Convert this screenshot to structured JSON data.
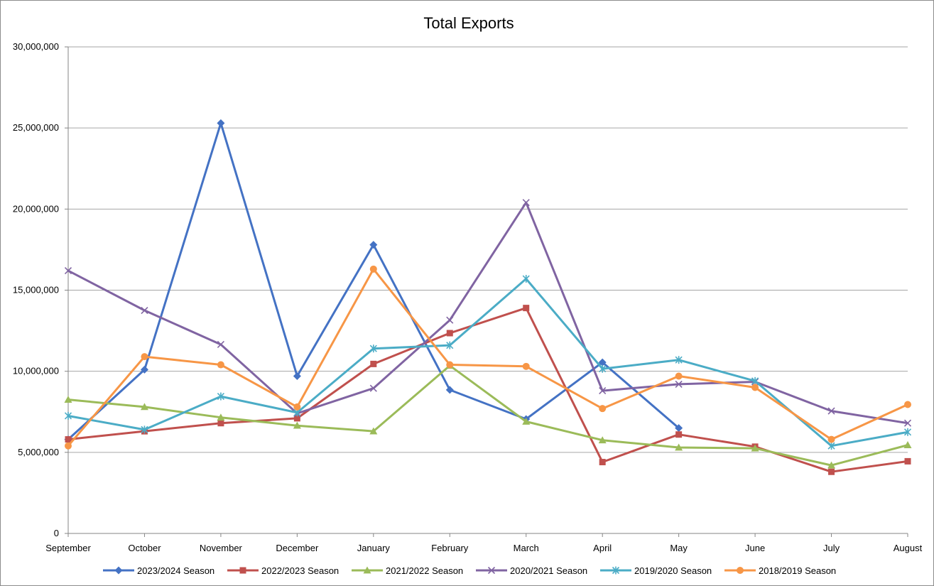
{
  "chart_data": {
    "type": "line",
    "title": "Total Exports",
    "xlabel": "",
    "ylabel": "",
    "categories": [
      "September",
      "October",
      "November",
      "December",
      "January",
      "February",
      "March",
      "April",
      "May",
      "June",
      "July",
      "August"
    ],
    "ylim": [
      0,
      30000000
    ],
    "yticks": [
      0,
      5000000,
      10000000,
      15000000,
      20000000,
      25000000,
      30000000
    ],
    "ytick_labels": [
      "0",
      "5,000,000",
      "10,000,000",
      "15,000,000",
      "20,000,000",
      "25,000,000",
      "30,000,000"
    ],
    "grid": true,
    "legend_position": "bottom",
    "series": [
      {
        "name": "2023/2024 Season",
        "color": "#4472c4",
        "marker": "diamond",
        "values": [
          5800000,
          10100000,
          25300000,
          9700000,
          17800000,
          8850000,
          7050000,
          10550000,
          6500000,
          null,
          null,
          null
        ]
      },
      {
        "name": "2022/2023 Season",
        "color": "#c0504d",
        "marker": "square",
        "values": [
          5800000,
          6300000,
          6800000,
          7100000,
          10450000,
          12350000,
          13900000,
          4400000,
          6100000,
          5350000,
          3800000,
          4450000
        ]
      },
      {
        "name": "2021/2022 Season",
        "color": "#9bbb59",
        "marker": "triangle",
        "values": [
          8250000,
          7800000,
          7150000,
          6650000,
          6300000,
          10350000,
          6900000,
          5750000,
          5300000,
          5250000,
          4200000,
          5450000
        ]
      },
      {
        "name": "2020/2021 Season",
        "color": "#8064a2",
        "marker": "x",
        "values": [
          16200000,
          13750000,
          11650000,
          7400000,
          8950000,
          13150000,
          20400000,
          8800000,
          9200000,
          9350000,
          7550000,
          6800000
        ]
      },
      {
        "name": "2019/2020 Season",
        "color": "#4bacc6",
        "marker": "star",
        "values": [
          7250000,
          6400000,
          8450000,
          7450000,
          11400000,
          11600000,
          15700000,
          10150000,
          10700000,
          9400000,
          5400000,
          6250000
        ]
      },
      {
        "name": "2018/2019 Season",
        "color": "#f79646",
        "marker": "circle",
        "values": [
          5400000,
          10900000,
          10400000,
          7800000,
          16300000,
          10400000,
          10300000,
          7700000,
          9700000,
          9000000,
          5800000,
          7950000
        ]
      }
    ]
  }
}
